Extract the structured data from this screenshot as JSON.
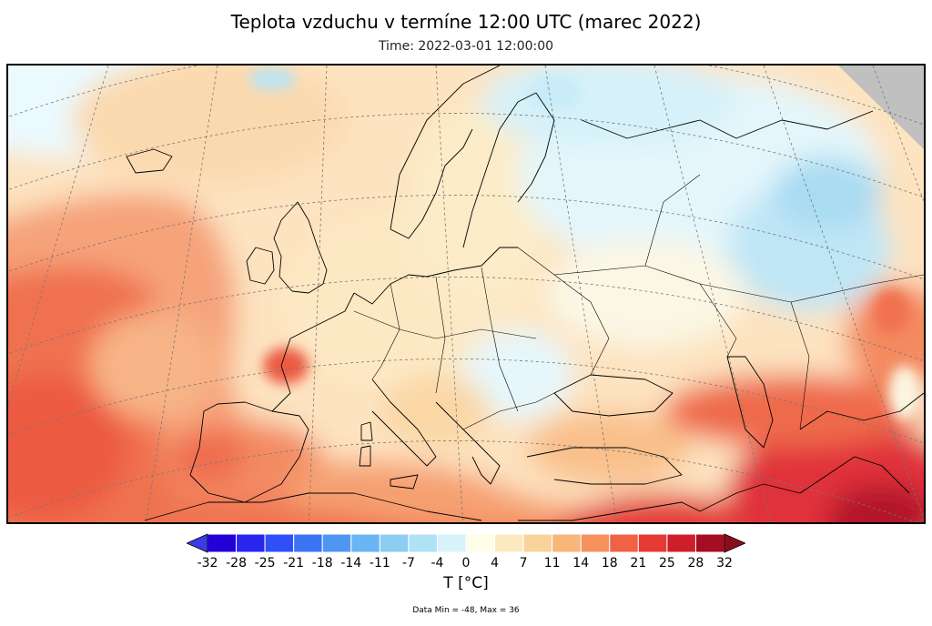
{
  "title": "Teplota vzduchu v termíne 12:00 UTC (marec 2022)",
  "subtitle": "Time: 2022-03-01 12:00:00",
  "colorbar": {
    "unit_label": "T [°C]",
    "ticks": [
      "-32",
      "-28",
      "-25",
      "-21",
      "-18",
      "-14",
      "-11",
      "-7",
      "-4",
      "0",
      "4",
      "7",
      "11",
      "14",
      "18",
      "21",
      "25",
      "28",
      "32"
    ],
    "colors": [
      "#2200d8",
      "#2a26f0",
      "#2f4ff9",
      "#3a74f5",
      "#4f96f2",
      "#6ab5f3",
      "#8ccef2",
      "#b0e2f5",
      "#d8f3f9",
      "#fdfde8",
      "#fde9c0",
      "#f9d39c",
      "#f9b67a",
      "#f7915e",
      "#f06244",
      "#e43a33",
      "#cf1e2b",
      "#a50d22"
    ],
    "under_color": "#3a3ae6",
    "over_color": "#8a0d1e"
  },
  "footer": "Data Min = -48, Max = 36",
  "map": {
    "region": "Europe",
    "missing_data_color": "#c0c0c0"
  }
}
